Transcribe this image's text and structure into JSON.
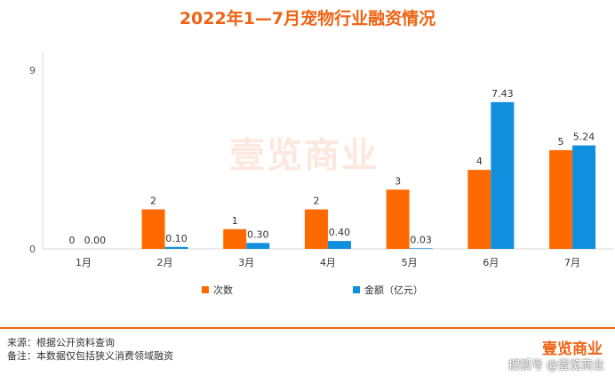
{
  "title": "2022年1—7月宠物行业融资情况",
  "chart_data": {
    "type": "bar",
    "categories": [
      "1月",
      "2月",
      "3月",
      "4月",
      "5月",
      "6月",
      "7月"
    ],
    "series": [
      {
        "name": "次数",
        "values": [
          0,
          2,
          1,
          2,
          3,
          4,
          5
        ],
        "labels": [
          "0",
          "2",
          "1",
          "2",
          "3",
          "4",
          "5"
        ],
        "color": "#ff6a00"
      },
      {
        "name": "金额（亿元）",
        "values": [
          0.0,
          0.1,
          0.3,
          0.4,
          0.03,
          7.43,
          5.24
        ],
        "labels": [
          "0.00",
          "0.10",
          "0.30",
          "0.40",
          "0.03",
          "7.43",
          "5.24"
        ],
        "color": "#0f8fde"
      }
    ],
    "y_ticks": [
      "0",
      "9"
    ],
    "ylim": [
      0,
      9
    ],
    "grid": false,
    "legend": "bottom"
  },
  "watermark": "壹览商业",
  "footer": {
    "source": "来源：根据公开资料查询",
    "note": "备注：本数据仅包括狭义消费领域融资"
  },
  "brand": {
    "logo": "壹览商业",
    "watermark": "搜狐号 @壹览商业"
  }
}
